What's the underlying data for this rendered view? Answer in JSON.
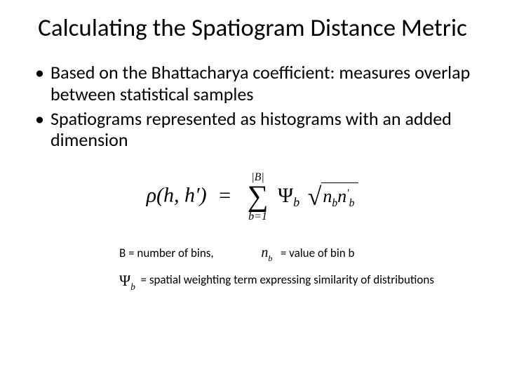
{
  "title": "Calculating the Spatiogram Distance Metric",
  "bullets": [
    "Based on the Bhattacharya coefficient: measures overlap between statistical samples",
    "Spatiograms represented as histograms with an added dimension"
  ],
  "formula": {
    "lhs_rho": "ρ",
    "lhs_args": "(h, h′)",
    "eq": "=",
    "sum_upper": "|B|",
    "sum_lower": "b=1",
    "psi": "Ψ",
    "psi_sub": "b",
    "rad_n1": "n",
    "rad_n1_sub": "b",
    "rad_n2": "n",
    "rad_n2_sub": "b",
    "rad_prime": "′"
  },
  "legend": {
    "b_label": "B = number of bins,",
    "nb_eq": "= value of bin b",
    "psi_eq": "= spatial weighting term expressing similarity of distributions"
  },
  "colors": {
    "text": "#000000",
    "background": "#ffffff"
  },
  "typography": {
    "title_fontsize": 35,
    "bullet_fontsize": 26,
    "formula_fontsize": 30,
    "legend_fontsize": 17
  }
}
